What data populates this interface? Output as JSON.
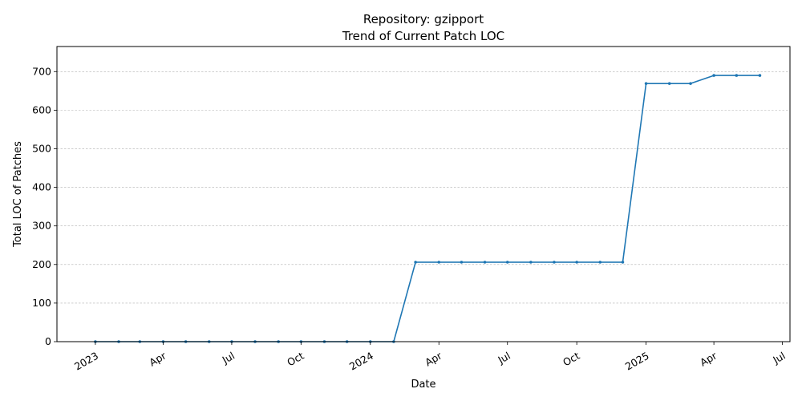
{
  "chart_data": {
    "type": "line",
    "title_line1": "Repository: gzipport",
    "title_line2": "Trend of Current Patch LOC",
    "xlabel": "Date",
    "ylabel": "Total LOC of Patches",
    "ylim": [
      0,
      765
    ],
    "yticks": [
      0,
      100,
      200,
      300,
      400,
      500,
      600,
      700
    ],
    "xlim": [
      "2022-11-11",
      "2025-07-11"
    ],
    "xticks": [
      {
        "date": "2023-01-01",
        "label": "2023"
      },
      {
        "date": "2023-04-01",
        "label": "Apr"
      },
      {
        "date": "2023-07-01",
        "label": "Jul"
      },
      {
        "date": "2023-10-01",
        "label": "Oct"
      },
      {
        "date": "2024-01-01",
        "label": "2024"
      },
      {
        "date": "2024-04-01",
        "label": "Apr"
      },
      {
        "date": "2024-07-01",
        "label": "Jul"
      },
      {
        "date": "2024-10-01",
        "label": "Oct"
      },
      {
        "date": "2025-01-01",
        "label": "2025"
      },
      {
        "date": "2025-04-01",
        "label": "Apr"
      },
      {
        "date": "2025-07-01",
        "label": "Jul"
      }
    ],
    "grid": "y-dashed",
    "color": "#1f77b4",
    "series": [
      {
        "points": [
          [
            "2023-01-01",
            0
          ],
          [
            "2023-02-01",
            0
          ],
          [
            "2023-03-01",
            0
          ],
          [
            "2023-04-01",
            0
          ],
          [
            "2023-05-01",
            0
          ],
          [
            "2023-06-01",
            0
          ],
          [
            "2023-07-01",
            0
          ],
          [
            "2023-08-01",
            0
          ],
          [
            "2023-09-01",
            0
          ],
          [
            "2023-10-01",
            0
          ],
          [
            "2023-11-01",
            0
          ],
          [
            "2023-12-01",
            0
          ],
          [
            "2024-01-01",
            0
          ],
          [
            "2024-02-01",
            0
          ],
          [
            "2024-03-01",
            206
          ],
          [
            "2024-04-01",
            206
          ],
          [
            "2024-05-01",
            206
          ],
          [
            "2024-06-01",
            206
          ],
          [
            "2024-07-01",
            206
          ],
          [
            "2024-08-01",
            206
          ],
          [
            "2024-09-01",
            206
          ],
          [
            "2024-10-01",
            206
          ],
          [
            "2024-11-01",
            206
          ],
          [
            "2024-12-01",
            206
          ],
          [
            "2025-01-01",
            669
          ],
          [
            "2025-02-01",
            669
          ],
          [
            "2025-03-01",
            669
          ],
          [
            "2025-04-01",
            690
          ],
          [
            "2025-05-01",
            690
          ],
          [
            "2025-06-01",
            690
          ]
        ]
      }
    ]
  }
}
